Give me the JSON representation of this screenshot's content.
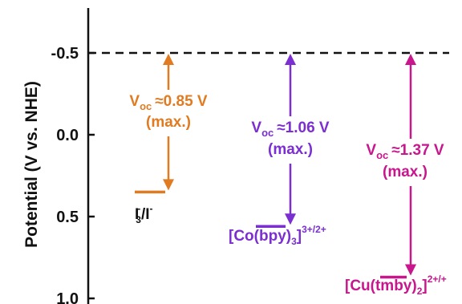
{
  "chart_data": {
    "type": "energy_level_diagram",
    "title": "",
    "ylabel": "Potential (V vs. NHE)",
    "yticks": [
      "-0.5",
      "0.0",
      "0.5",
      "1.0"
    ],
    "ylim": [
      -0.8,
      1.0
    ],
    "y_inverted": true,
    "reference_level": {
      "potential": -0.5,
      "style": "dashed"
    },
    "levels": [
      {
        "couple_main": "I",
        "couple_sub": "3",
        "couple_sup": "-",
        "couple_rest": "/I",
        "couple_rest_sup": "-",
        "potential": 0.35,
        "voc_label": "V",
        "voc_sub": "oc",
        "voc_value": "≈0.85 V",
        "voc_note": "(max.)",
        "color": "#e07b22"
      },
      {
        "couple_main": "[Co(bpy)",
        "couple_sub": "3",
        "couple_close": "]",
        "couple_sup": "3+/2+",
        "potential": 0.56,
        "voc_label": "V",
        "voc_sub": "oc",
        "voc_value": "≈1.06 V",
        "voc_note": "(max.)",
        "color": "#7b2fd0"
      },
      {
        "couple_main": "[Cu(tmby)",
        "couple_sub": "2",
        "couple_close": "]",
        "couple_sup": "2+/+",
        "potential": 0.87,
        "voc_label": "V",
        "voc_sub": "oc",
        "voc_value": "≈1.37 V",
        "voc_note": "(max.)",
        "color": "#c8168d"
      }
    ]
  }
}
